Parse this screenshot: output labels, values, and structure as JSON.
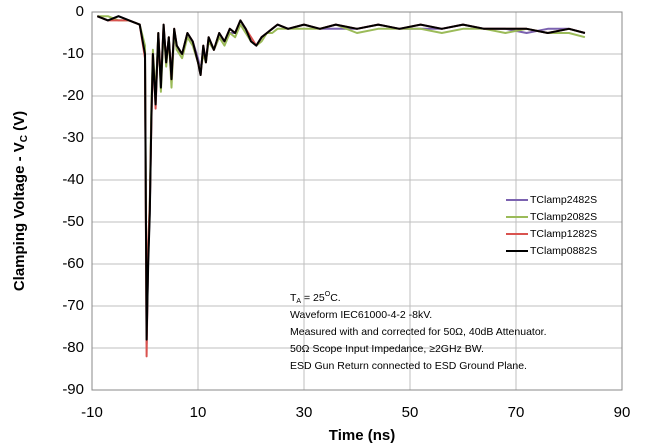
{
  "chart_data": {
    "type": "line",
    "x_label": "Time (ns)",
    "y_label": {
      "text": "Clamping Voltage - V",
      "sub": "C",
      "suffix": " (V)"
    },
    "xlim": [
      -10,
      90
    ],
    "xticks": [
      -10,
      10,
      30,
      50,
      70,
      90
    ],
    "ylim": [
      -90,
      0
    ],
    "yticks": [
      0,
      -10,
      -20,
      -30,
      -40,
      -50,
      -60,
      -70,
      -80,
      -90
    ],
    "grid": true,
    "legend": "right",
    "annotation": {
      "first": {
        "t": "T",
        "sub": "A",
        "mid": " = 25",
        "sup": "O",
        "end": "C."
      },
      "lines": [
        "Waveform IEC61000-4-2 -8kV.",
        "Measured with and corrected for 50Ω, 40dB Attenuator.",
        "50Ω Scope Input Impedance, ≥2GHz BW.",
        "ESD Gun Return connected to ESD Ground Plane."
      ]
    },
    "x": [
      -9,
      -7,
      -5,
      -3,
      -1,
      0,
      0.3,
      0.6,
      0.9,
      1.2,
      1.5,
      2,
      2.5,
      3,
      3.5,
      4,
      4.5,
      5,
      5.5,
      6,
      7,
      8,
      9,
      10,
      10.5,
      11,
      11.5,
      12,
      13,
      14,
      15,
      16,
      17,
      18,
      19,
      20,
      21,
      22,
      23,
      24,
      25,
      27,
      30,
      33,
      36,
      40,
      44,
      48,
      52,
      56,
      60,
      64,
      68,
      72,
      76,
      80,
      83
    ],
    "series": [
      {
        "name": "TClamp2482S",
        "color": "#7b62b0",
        "values": [
          -1,
          -2,
          -1,
          -2,
          -3,
          -9,
          -79,
          -58,
          -47,
          -24,
          -11,
          -21,
          -6,
          -17,
          -4,
          -11,
          -7,
          -15,
          -5,
          -9,
          -10,
          -6,
          -7,
          -11,
          -14,
          -9,
          -11,
          -7,
          -9,
          -6,
          -7,
          -5,
          -5,
          -3,
          -4,
          -7,
          -8,
          -6,
          -5,
          -4,
          -3,
          -4,
          -3,
          -4,
          -4,
          -4,
          -3,
          -4,
          -4,
          -4,
          -3,
          -4,
          -4,
          -5,
          -4,
          -4,
          -5
        ]
      },
      {
        "name": "TClamp2082S",
        "color": "#9bbb59",
        "values": [
          -1,
          -1,
          -2,
          -2,
          -3,
          -8,
          -76,
          -56,
          -45,
          -22,
          -9,
          -20,
          -5,
          -19,
          -4,
          -13,
          -6,
          -18,
          -5,
          -9,
          -11,
          -6,
          -8,
          -12,
          -14,
          -10,
          -12,
          -7,
          -9,
          -6,
          -8,
          -5,
          -6,
          -3,
          -5,
          -7,
          -8,
          -7,
          -5,
          -5,
          -4,
          -4,
          -4,
          -4,
          -3,
          -5,
          -4,
          -4,
          -4,
          -5,
          -4,
          -4,
          -5,
          -4,
          -5,
          -5,
          -6
        ]
      },
      {
        "name": "TClamp1282S",
        "color": "#d9534f",
        "values": [
          -1,
          -2,
          -2,
          -2,
          -3,
          -11,
          -82,
          -55,
          -46,
          -26,
          -10,
          -23,
          -5,
          -17,
          -3,
          -12,
          -6,
          -16,
          -4,
          -8,
          -10,
          -5,
          -7,
          -12,
          -15,
          -8,
          -12,
          -6,
          -9,
          -5,
          -7,
          -4,
          -5,
          -2,
          -4,
          -6,
          -8,
          -6,
          -5,
          -4,
          -3,
          -4,
          -3,
          -4,
          -3,
          -4,
          -3,
          -4,
          -3,
          -4,
          -3,
          -4,
          -4,
          -4,
          -5,
          -4,
          -5
        ]
      },
      {
        "name": "TClamp0882S",
        "color": "#000000",
        "values": [
          -1,
          -2,
          -1,
          -2,
          -3,
          -10,
          -78,
          -60,
          -48,
          -25,
          -10,
          -22,
          -5,
          -18,
          -3,
          -12,
          -6,
          -16,
          -4,
          -8,
          -10,
          -5,
          -7,
          -12,
          -15,
          -8,
          -12,
          -6,
          -9,
          -5,
          -7,
          -4,
          -5,
          -2,
          -4,
          -7,
          -8,
          -6,
          -5,
          -4,
          -3,
          -4,
          -3,
          -4,
          -3,
          -4,
          -3,
          -4,
          -3,
          -4,
          -3,
          -4,
          -4,
          -4,
          -5,
          -4,
          -5
        ]
      }
    ]
  }
}
